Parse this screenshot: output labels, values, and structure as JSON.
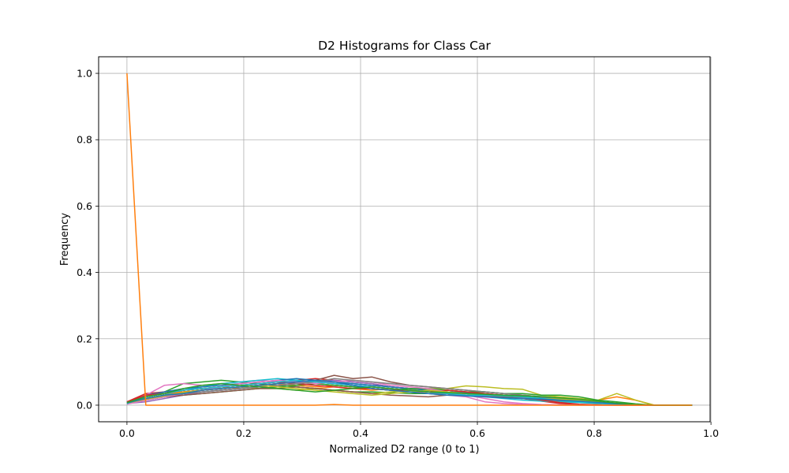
{
  "chart_data": {
    "type": "line",
    "title": "D2 Histograms for Class Car",
    "xlabel": "Normalized D2 range (0 to 1)",
    "ylabel": "Frequency",
    "xlim": [
      -0.0485,
      0.9985
    ],
    "ylim": [
      -0.05,
      1.05
    ],
    "xticks": [
      "0.0",
      "0.2",
      "0.4",
      "0.6",
      "0.8",
      "1.0"
    ],
    "xtick_values": [
      0.0,
      0.2,
      0.4,
      0.6,
      0.8,
      1.0
    ],
    "yticks": [
      "0.0",
      "0.2",
      "0.4",
      "0.6",
      "0.8",
      "1.0"
    ],
    "ytick_values": [
      0.0,
      0.2,
      0.4,
      0.6,
      0.8,
      1.0
    ],
    "grid": true,
    "legend": "none",
    "x": [
      0.0,
      0.0323,
      0.0645,
      0.0968,
      0.129,
      0.1613,
      0.1935,
      0.2258,
      0.2581,
      0.2903,
      0.3226,
      0.3548,
      0.3871,
      0.4194,
      0.4516,
      0.4839,
      0.5161,
      0.5484,
      0.5806,
      0.6129,
      0.6452,
      0.6774,
      0.7097,
      0.7419,
      0.7742,
      0.8065,
      0.8387,
      0.871,
      0.9032,
      0.9355,
      0.9677
    ],
    "series": [
      {
        "color": "#1f77b4",
        "values": [
          0.006,
          0.02,
          0.03,
          0.04,
          0.045,
          0.05,
          0.055,
          0.06,
          0.065,
          0.07,
          0.075,
          0.07,
          0.065,
          0.06,
          0.055,
          0.05,
          0.045,
          0.04,
          0.038,
          0.035,
          0.03,
          0.025,
          0.02,
          0.015,
          0.01,
          0.006,
          0.003,
          0.001,
          0.0,
          0.0,
          0.0
        ]
      },
      {
        "color": "#ff7f0e",
        "values": [
          0.005,
          0.03,
          0.035,
          0.045,
          0.05,
          0.055,
          0.05,
          0.055,
          0.06,
          0.055,
          0.05,
          0.055,
          0.05,
          0.045,
          0.05,
          0.045,
          0.04,
          0.035,
          0.03,
          0.028,
          0.025,
          0.02,
          0.015,
          0.012,
          0.01,
          0.015,
          0.025,
          0.015,
          0.0,
          0.0,
          0.0
        ]
      },
      {
        "color": "#2ca02c",
        "values": [
          0.008,
          0.025,
          0.04,
          0.065,
          0.07,
          0.075,
          0.07,
          0.065,
          0.06,
          0.055,
          0.05,
          0.045,
          0.04,
          0.04,
          0.038,
          0.035,
          0.035,
          0.03,
          0.03,
          0.028,
          0.025,
          0.025,
          0.022,
          0.02,
          0.015,
          0.01,
          0.006,
          0.002,
          0.0,
          0.0,
          0.0
        ]
      },
      {
        "color": "#d62728",
        "values": [
          0.01,
          0.035,
          0.04,
          0.045,
          0.05,
          0.055,
          0.06,
          0.065,
          0.07,
          0.075,
          0.08,
          0.075,
          0.07,
          0.065,
          0.055,
          0.05,
          0.045,
          0.045,
          0.04,
          0.035,
          0.03,
          0.02,
          0.012,
          0.005,
          0.002,
          0.001,
          0.0,
          0.0,
          0.0,
          0.0,
          0.0
        ]
      },
      {
        "color": "#9467bd",
        "values": [
          0.005,
          0.015,
          0.025,
          0.035,
          0.04,
          0.045,
          0.05,
          0.055,
          0.06,
          0.065,
          0.07,
          0.075,
          0.07,
          0.065,
          0.055,
          0.05,
          0.045,
          0.04,
          0.035,
          0.03,
          0.025,
          0.02,
          0.018,
          0.015,
          0.012,
          0.008,
          0.005,
          0.002,
          0.0,
          0.0,
          0.0
        ]
      },
      {
        "color": "#8c564b",
        "values": [
          0.008,
          0.02,
          0.03,
          0.04,
          0.045,
          0.05,
          0.055,
          0.06,
          0.065,
          0.07,
          0.075,
          0.09,
          0.08,
          0.085,
          0.07,
          0.06,
          0.055,
          0.05,
          0.045,
          0.04,
          0.035,
          0.03,
          0.025,
          0.02,
          0.015,
          0.01,
          0.005,
          0.002,
          0.0,
          0.0,
          0.0
        ]
      },
      {
        "color": "#e377c2",
        "values": [
          0.004,
          0.03,
          0.06,
          0.065,
          0.06,
          0.065,
          0.07,
          0.075,
          0.07,
          0.065,
          0.07,
          0.065,
          0.06,
          0.055,
          0.05,
          0.045,
          0.04,
          0.03,
          0.025,
          0.01,
          0.005,
          0.002,
          0.001,
          0.0,
          0.0,
          0.0,
          0.0,
          0.0,
          0.0,
          0.0,
          0.0
        ]
      },
      {
        "color": "#7f7f7f",
        "values": [
          0.006,
          0.025,
          0.035,
          0.045,
          0.05,
          0.05,
          0.055,
          0.05,
          0.055,
          0.06,
          0.065,
          0.06,
          0.055,
          0.05,
          0.045,
          0.04,
          0.035,
          0.035,
          0.03,
          0.03,
          0.025,
          0.02,
          0.015,
          0.012,
          0.01,
          0.008,
          0.005,
          0.002,
          0.0,
          0.0,
          0.0
        ]
      },
      {
        "color": "#bcbd22",
        "values": [
          0.005,
          0.02,
          0.03,
          0.04,
          0.045,
          0.05,
          0.055,
          0.05,
          0.05,
          0.045,
          0.05,
          0.045,
          0.04,
          0.035,
          0.04,
          0.045,
          0.05,
          0.05,
          0.058,
          0.055,
          0.05,
          0.048,
          0.03,
          0.025,
          0.02,
          0.015,
          0.035,
          0.015,
          0.0,
          0.0,
          0.0
        ]
      },
      {
        "color": "#17becf",
        "values": [
          0.007,
          0.02,
          0.03,
          0.045,
          0.055,
          0.065,
          0.07,
          0.075,
          0.08,
          0.075,
          0.07,
          0.065,
          0.06,
          0.055,
          0.05,
          0.045,
          0.04,
          0.035,
          0.03,
          0.025,
          0.02,
          0.015,
          0.012,
          0.01,
          0.008,
          0.005,
          0.003,
          0.001,
          0.0,
          0.0,
          0.0
        ]
      },
      {
        "color": "#1f77b4",
        "values": [
          0.009,
          0.03,
          0.04,
          0.05,
          0.055,
          0.06,
          0.065,
          0.07,
          0.075,
          0.08,
          0.075,
          0.07,
          0.065,
          0.06,
          0.055,
          0.05,
          0.045,
          0.04,
          0.035,
          0.03,
          0.028,
          0.025,
          0.022,
          0.02,
          0.015,
          0.01,
          0.005,
          0.002,
          0.0,
          0.0,
          0.0
        ]
      },
      {
        "color": "#ff7f0e",
        "values": [
          0.004,
          0.025,
          0.035,
          0.04,
          0.045,
          0.05,
          0.055,
          0.06,
          0.065,
          0.06,
          0.055,
          0.06,
          0.055,
          0.05,
          0.045,
          0.04,
          0.04,
          0.035,
          0.03,
          0.03,
          0.028,
          0.025,
          0.02,
          0.015,
          0.012,
          0.008,
          0.005,
          0.002,
          0.0,
          0.0,
          0.0
        ]
      },
      {
        "color": "#2ca02c",
        "values": [
          0.006,
          0.02,
          0.025,
          0.03,
          0.035,
          0.04,
          0.045,
          0.05,
          0.055,
          0.06,
          0.065,
          0.06,
          0.055,
          0.05,
          0.045,
          0.05,
          0.05,
          0.045,
          0.04,
          0.04,
          0.035,
          0.035,
          0.03,
          0.03,
          0.025,
          0.015,
          0.01,
          0.004,
          0.0,
          0.0,
          0.0
        ]
      },
      {
        "color": "#d62728",
        "values": [
          0.01,
          0.03,
          0.035,
          0.045,
          0.05,
          0.055,
          0.06,
          0.065,
          0.07,
          0.065,
          0.06,
          0.055,
          0.05,
          0.05,
          0.045,
          0.045,
          0.04,
          0.045,
          0.04,
          0.035,
          0.03,
          0.025,
          0.015,
          0.008,
          0.003,
          0.001,
          0.0,
          0.0,
          0.0,
          0.0,
          0.0
        ]
      },
      {
        "color": "#9467bd",
        "values": [
          0.005,
          0.01,
          0.02,
          0.03,
          0.04,
          0.045,
          0.05,
          0.055,
          0.06,
          0.065,
          0.07,
          0.065,
          0.06,
          0.055,
          0.05,
          0.045,
          0.04,
          0.035,
          0.03,
          0.028,
          0.025,
          0.022,
          0.02,
          0.018,
          0.015,
          0.01,
          0.005,
          0.002,
          0.0,
          0.0,
          0.0
        ]
      },
      {
        "color": "#8c564b",
        "values": [
          0.007,
          0.015,
          0.025,
          0.03,
          0.035,
          0.04,
          0.045,
          0.05,
          0.05,
          0.055,
          0.05,
          0.045,
          0.04,
          0.035,
          0.03,
          0.028,
          0.025,
          0.03,
          0.035,
          0.03,
          0.025,
          0.02,
          0.018,
          0.015,
          0.012,
          0.008,
          0.005,
          0.002,
          0.0,
          0.0,
          0.0
        ]
      },
      {
        "color": "#e377c2",
        "values": [
          0.003,
          0.015,
          0.025,
          0.035,
          0.045,
          0.055,
          0.065,
          0.07,
          0.075,
          0.07,
          0.065,
          0.07,
          0.075,
          0.07,
          0.06,
          0.055,
          0.05,
          0.04,
          0.03,
          0.02,
          0.01,
          0.005,
          0.002,
          0.001,
          0.0,
          0.0,
          0.0,
          0.0,
          0.0,
          0.0,
          0.0
        ]
      },
      {
        "color": "#7f7f7f",
        "values": [
          0.008,
          0.02,
          0.03,
          0.035,
          0.04,
          0.045,
          0.05,
          0.055,
          0.06,
          0.065,
          0.07,
          0.08,
          0.075,
          0.07,
          0.065,
          0.06,
          0.055,
          0.05,
          0.045,
          0.04,
          0.035,
          0.03,
          0.025,
          0.02,
          0.015,
          0.01,
          0.006,
          0.002,
          0.0,
          0.0,
          0.0
        ]
      },
      {
        "color": "#bcbd22",
        "values": [
          0.006,
          0.018,
          0.028,
          0.038,
          0.045,
          0.05,
          0.055,
          0.06,
          0.055,
          0.05,
          0.045,
          0.04,
          0.035,
          0.03,
          0.035,
          0.04,
          0.045,
          0.04,
          0.035,
          0.03,
          0.028,
          0.025,
          0.02,
          0.018,
          0.015,
          0.01,
          0.005,
          0.002,
          0.0,
          0.0,
          0.0
        ]
      },
      {
        "color": "#17becf",
        "values": [
          0.005,
          0.025,
          0.035,
          0.045,
          0.05,
          0.055,
          0.06,
          0.065,
          0.07,
          0.075,
          0.07,
          0.065,
          0.06,
          0.055,
          0.05,
          0.045,
          0.04,
          0.035,
          0.03,
          0.03,
          0.028,
          0.025,
          0.02,
          0.015,
          0.01,
          0.006,
          0.003,
          0.001,
          0.0,
          0.0,
          0.0
        ]
      },
      {
        "color": "#1f77b4",
        "values": [
          0.007,
          0.02,
          0.03,
          0.035,
          0.045,
          0.05,
          0.055,
          0.06,
          0.065,
          0.07,
          0.075,
          0.07,
          0.06,
          0.05,
          0.045,
          0.04,
          0.035,
          0.03,
          0.028,
          0.025,
          0.022,
          0.02,
          0.018,
          0.015,
          0.012,
          0.008,
          0.004,
          0.001,
          0.0,
          0.0,
          0.0
        ]
      },
      {
        "color": "#2ca02c",
        "values": [
          0.008,
          0.025,
          0.035,
          0.05,
          0.06,
          0.065,
          0.06,
          0.055,
          0.05,
          0.045,
          0.04,
          0.045,
          0.05,
          0.055,
          0.05,
          0.045,
          0.04,
          0.038,
          0.035,
          0.033,
          0.03,
          0.028,
          0.026,
          0.022,
          0.018,
          0.012,
          0.006,
          0.002,
          0.0,
          0.0,
          0.0
        ]
      },
      {
        "color": "#ff7f0e",
        "values": [
          1.0,
          0.0,
          0.0,
          0.0,
          0.0,
          0.0,
          0.0,
          0.0,
          0.0,
          0.0,
          0.0,
          0.002,
          0.0,
          0.0,
          0.0,
          0.0,
          0.0,
          0.0,
          0.0,
          0.0,
          0.0,
          0.0,
          0.0,
          0.0,
          0.0,
          0.0,
          0.0,
          0.0,
          0.0,
          0.0,
          0.0
        ]
      }
    ]
  }
}
